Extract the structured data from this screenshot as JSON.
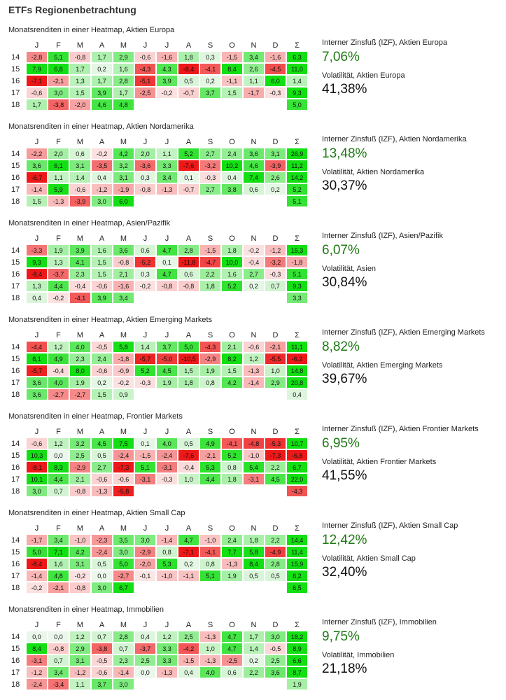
{
  "title": "ETFs Regionenbetrachtung",
  "months": [
    "J",
    "F",
    "M",
    "A",
    "M",
    "J",
    "J",
    "A",
    "S",
    "O",
    "N",
    "D",
    "Σ"
  ],
  "sections": [
    {
      "title": "Monatsrenditen in einer Heatmap, Aktien Europa",
      "irr_label": "Interner Zinsfuß (IZF), Aktien Europa",
      "irr_value": "7,06%",
      "vol_label": "Volatilität, Aktien Europa",
      "vol_value": "41,38%",
      "rows": [
        {
          "year": "14",
          "values": [
            "-2,8",
            "5,1",
            "-0,8",
            "1,7",
            "2,9",
            "-0,6",
            "-1,6",
            "1,8",
            "0,3",
            "-1,5",
            "3,4",
            "-1,6",
            "6,3"
          ]
        },
        {
          "year": "15",
          "values": [
            "7,9",
            "6,8",
            "1,7",
            "0,2",
            "1,6",
            "-4,3",
            "4,3",
            "-8,4",
            "-4,1",
            "8,4",
            "2,6",
            "-4,5",
            "11,0"
          ]
        },
        {
          "year": "16",
          "values": [
            "-7,1",
            "-2,1",
            "1,3",
            "1,7",
            "2,8",
            "-5,1",
            "3,9",
            "0,5",
            "0,2",
            "-1,1",
            "1,1",
            "6,0",
            "1,4"
          ]
        },
        {
          "year": "17",
          "values": [
            "-0,6",
            "3,0",
            "1,5",
            "3,9",
            "1,7",
            "-2,5",
            "-0,2",
            "-0,7",
            "3,7",
            "1,5",
            "-1,7",
            "-0,3",
            "9,3"
          ]
        },
        {
          "year": "18",
          "values": [
            "1,7",
            "-3,8",
            "-2,0",
            "4,6",
            "4,8",
            "",
            "",
            "",
            "",
            "",
            "",
            "",
            "5,0"
          ]
        }
      ]
    },
    {
      "title": "Monatsrenditen in einer Heatmap, Aktien Nordamerika",
      "irr_label": "Interner Zinsfuß (IZF), Aktien Nordamerika",
      "irr_value": "13,48%",
      "vol_label": "Volatilität, Aktien Nordamerika",
      "vol_value": "30,37%",
      "rows": [
        {
          "year": "14",
          "values": [
            "-2,2",
            "2,0",
            "0,6",
            "-0,2",
            "4,2",
            "2,0",
            "1,1",
            "5,2",
            "2,7",
            "2,4",
            "3,6",
            "3,1",
            "26,9"
          ]
        },
        {
          "year": "15",
          "values": [
            "3,6",
            "6,1",
            "3,1",
            "-3,5",
            "3,2",
            "-3,6",
            "3,3",
            "-7,6",
            "-3,2",
            "10,2",
            "4,6",
            "-3,9",
            "11,2"
          ]
        },
        {
          "year": "16",
          "values": [
            "-6,7",
            "1,1",
            "1,4",
            "0,4",
            "3,1",
            "0,3",
            "3,4",
            "0,1",
            "-0,3",
            "0,4",
            "7,4",
            "2,6",
            "14,2"
          ]
        },
        {
          "year": "17",
          "values": [
            "-1,4",
            "5,9",
            "-0,6",
            "-1,2",
            "-1,9",
            "-0,8",
            "-1,3",
            "-0,7",
            "2,7",
            "3,8",
            "0,6",
            "0,2",
            "5,2"
          ]
        },
        {
          "year": "18",
          "values": [
            "1,5",
            "-1,3",
            "-3,9",
            "3,0",
            "6,0",
            "",
            "",
            "",
            "",
            "",
            "",
            "",
            "5,1"
          ]
        }
      ]
    },
    {
      "title": "Monatsrenditen in einer Heatmap, Asien/Pazifik",
      "irr_label": "Interner Zinsfuß (IZF), Asien/Pazifik",
      "irr_value": "6,07%",
      "vol_label": "Volatilität, Asien",
      "vol_value": "30,84%",
      "rows": [
        {
          "year": "14",
          "values": [
            "-3,3",
            "1,9",
            "3,9",
            "1,6",
            "3,6",
            "0,6",
            "4,7",
            "2,8",
            "-1,5",
            "1,8",
            "-0,2",
            "-1,2",
            "15,3"
          ]
        },
        {
          "year": "15",
          "values": [
            "9,3",
            "1,3",
            "4,1",
            "1,5",
            "-0,8",
            "-5,2",
            "0,1",
            "-11,8",
            "-4,7",
            "10,0",
            "-0,4",
            "-3,2",
            "-1,8"
          ]
        },
        {
          "year": "16",
          "values": [
            "-8,4",
            "-3,7",
            "2,3",
            "1,5",
            "2,1",
            "0,3",
            "4,7",
            "0,6",
            "2,2",
            "1,6",
            "2,7",
            "-0,3",
            "5,1"
          ]
        },
        {
          "year": "17",
          "values": [
            "1,3",
            "4,4",
            "-0,4",
            "-0,6",
            "-1,6",
            "-0,2",
            "-0,8",
            "-0,8",
            "1,8",
            "5,2",
            "0,2",
            "0,7",
            "9,3"
          ]
        },
        {
          "year": "18",
          "values": [
            "0,4",
            "-0,2",
            "-4,1",
            "3,9",
            "3,4",
            "",
            "",
            "",
            "",
            "",
            "",
            "",
            "3,3"
          ]
        }
      ]
    },
    {
      "title": "Monatsrenditen in einer Heatmap, Aktien Emerging Markets",
      "irr_label": "Interner Zinsfuß (IZF), Aktien Emerging Markets",
      "irr_value": "8,82%",
      "vol_label": "Volatilität, Aktien Emerging Markets",
      "vol_value": "39,67%",
      "rows": [
        {
          "year": "14",
          "values": [
            "-4,4",
            "1,2",
            "4,0",
            "-0,5",
            "5,8",
            "1,4",
            "3,7",
            "5,0",
            "-4,3",
            "2,1",
            "-0,6",
            "-2,1",
            "11,1"
          ]
        },
        {
          "year": "15",
          "values": [
            "8,1",
            "4,9",
            "2,3",
            "2,4",
            "-1,8",
            "-5,7",
            "-5,0",
            "-10,5",
            "-2,9",
            "8,2",
            "1,2",
            "-5,5",
            "-6,2"
          ]
        },
        {
          "year": "16",
          "values": [
            "-5,7",
            "-0,4",
            "8,0",
            "-0,6",
            "-0,9",
            "5,2",
            "4,5",
            "1,5",
            "1,9",
            "1,5",
            "-1,3",
            "1,0",
            "14,8"
          ]
        },
        {
          "year": "17",
          "values": [
            "3,6",
            "4,0",
            "1,9",
            "0,2",
            "-0,2",
            "-0,3",
            "1,9",
            "1,8",
            "0,8",
            "4,2",
            "-1,4",
            "2,9",
            "20,8"
          ]
        },
        {
          "year": "18",
          "values": [
            "3,6",
            "-2,7",
            "-2,7",
            "1,5",
            "0,9",
            "",
            "",
            "",
            "",
            "",
            "",
            "",
            "0,4"
          ]
        }
      ]
    },
    {
      "title": "Monatsrenditen in einer Heatmap, Frontier Markets",
      "irr_label": "Interner Zinsfuß (IZF), Aktien Frontier Markets",
      "irr_value": "6,95%",
      "vol_label": "Volatilität, Aktien Frontier Markets",
      "vol_value": "41,55%",
      "rows": [
        {
          "year": "14",
          "values": [
            "-0,6",
            "1,2",
            "3,2",
            "4,5",
            "7,5",
            "0,1",
            "4,0",
            "0,5",
            "4,9",
            "-4,1",
            "-4,8",
            "-5,3",
            "10,7"
          ]
        },
        {
          "year": "15",
          "values": [
            "10,3",
            "0,0",
            "2,5",
            "0,5",
            "-2,4",
            "-1,5",
            "-2,4",
            "-7,6",
            "-2,1",
            "5,2",
            "-1,0",
            "-7,3",
            "-6,8"
          ]
        },
        {
          "year": "16",
          "values": [
            "-8,1",
            "8,3",
            "-2,9",
            "2,7",
            "-7,3",
            "5,1",
            "-3,1",
            "-0,4",
            "5,3",
            "0,8",
            "5,4",
            "2,2",
            "6,7"
          ]
        },
        {
          "year": "17",
          "values": [
            "10,1",
            "4,4",
            "2,1",
            "-0,6",
            "-0,6",
            "-3,1",
            "-0,3",
            "1,0",
            "4,4",
            "1,8",
            "-3,1",
            "4,5",
            "22,0"
          ]
        },
        {
          "year": "18",
          "values": [
            "3,0",
            "0,7",
            "-0,8",
            "-1,3",
            "-5,8",
            "",
            "",
            "",
            "",
            "",
            "",
            "",
            "-4,3"
          ]
        }
      ]
    },
    {
      "title": "Monatsrenditen in einer Heatmap, Aktien Small Cap",
      "irr_label": "Interner Zinsfuß (IZF), Aktien Small Cap",
      "irr_value": "12,42%",
      "vol_label": "Volatilität, Aktien Small Cap",
      "vol_value": "32,40%",
      "rows": [
        {
          "year": "14",
          "values": [
            "-1,7",
            "3,4",
            "-1,0",
            "-2,3",
            "3,5",
            "3,0",
            "-1,4",
            "4,7",
            "-1,0",
            "2,4",
            "1,8",
            "2,2",
            "14,4"
          ]
        },
        {
          "year": "15",
          "values": [
            "5,0",
            "7,1",
            "4,2",
            "-2,4",
            "3,0",
            "-2,9",
            "0,8",
            "-7,1",
            "-4,1",
            "7,7",
            "5,8",
            "-4,9",
            "11,4"
          ]
        },
        {
          "year": "16",
          "values": [
            "-8,4",
            "1,6",
            "3,1",
            "0,5",
            "5,0",
            "-2,0",
            "5,3",
            "0,2",
            "0,8",
            "-1,3",
            "8,4",
            "2,8",
            "15,9"
          ]
        },
        {
          "year": "17",
          "values": [
            "-1,4",
            "4,8",
            "-0,2",
            "0,0",
            "-2,7",
            "-0,1",
            "-1,0",
            "-1,1",
            "5,1",
            "1,9",
            "0,5",
            "0,5",
            "6,2"
          ]
        },
        {
          "year": "18",
          "values": [
            "-0,2",
            "-2,1",
            "-0,8",
            "3,0",
            "6,7",
            "",
            "",
            "",
            "",
            "",
            "",
            "",
            "6,5"
          ]
        }
      ]
    },
    {
      "title": "Monatsrenditen in einer Heatmap, Immobilien",
      "irr_label": "Interner Zinsfuß (IZF), Immobilien",
      "irr_value": "9,75%",
      "vol_label": "Volatilität, Immobilien",
      "vol_value": "21,18%",
      "rows": [
        {
          "year": "14",
          "values": [
            "0,0",
            "0,0",
            "1,2",
            "0,7",
            "2,8",
            "0,4",
            "1,2",
            "2,5",
            "-1,3",
            "4,7",
            "1,7",
            "3,0",
            "18,2"
          ]
        },
        {
          "year": "15",
          "values": [
            "8,4",
            "-0,8",
            "2,9",
            "-3,8",
            "0,7",
            "-3,7",
            "3,3",
            "-4,2",
            "1,0",
            "4,7",
            "1,4",
            "-0,5",
            "8,9"
          ]
        },
        {
          "year": "16",
          "values": [
            "-3,1",
            "0,7",
            "3,1",
            "-0,5",
            "2,3",
            "2,5",
            "3,3",
            "-1,5",
            "-1,3",
            "-2,5",
            "0,2",
            "2,5",
            "6,6"
          ]
        },
        {
          "year": "17",
          "values": [
            "-1,2",
            "3,4",
            "-1,2",
            "-0,6",
            "-1,4",
            "0,0",
            "-1,3",
            "0,4",
            "4,0",
            "0,6",
            "2,2",
            "3,6",
            "8,7"
          ]
        },
        {
          "year": "18",
          "values": [
            "-2,4",
            "-3,4",
            "1,1",
            "3,7",
            "3,0",
            "",
            "",
            "",
            "",
            "",
            "",
            "",
            "1,9"
          ]
        }
      ]
    }
  ]
}
